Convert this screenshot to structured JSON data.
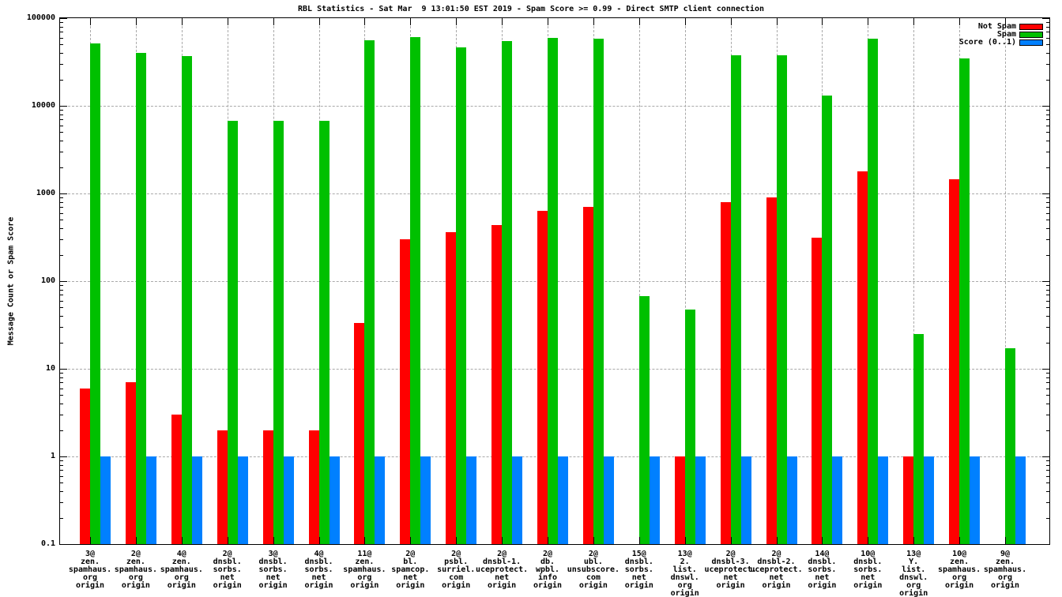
{
  "title": "RBL Statistics - Sat Mar  9 13:01:50 EST 2019 - Spam Score >= 0.99 - Direct SMTP client connection",
  "y_axis": {
    "label": "Message Count or Spam Score",
    "tick_labels": [
      "100000",
      "10000",
      "1000",
      "100",
      "10",
      "1",
      "0.1"
    ],
    "min": 0.1,
    "max": 100000,
    "scale": "log"
  },
  "legend": {
    "position": "top-right",
    "items": [
      {
        "label": "Not Spam",
        "color": "#ff0000"
      },
      {
        "label": "Spam",
        "color": "#00c000"
      },
      {
        "label": "Score (0..1)",
        "color": "#0080ff"
      }
    ]
  },
  "colors": {
    "not_spam": "#ff0000",
    "spam": "#00c000",
    "score": "#0080ff",
    "grid": "#a9a9a9",
    "border": "#000000"
  },
  "chart_data": {
    "type": "bar",
    "title": "RBL Statistics - Sat Mar  9 13:01:50 EST 2019 - Spam Score >= 0.99 - Direct SMTP client connection",
    "xlabel": "",
    "ylabel": "Message Count or Spam Score",
    "ylim": [
      0.1,
      100000
    ],
    "log_y": true,
    "grid": true,
    "legend_position": "top-right",
    "series_names": [
      "Not Spam",
      "Spam",
      "Score (0..1)"
    ],
    "groups": [
      {
        "label_lines": [
          "3@",
          "zen.",
          "spamhaus.",
          "org",
          "origin"
        ],
        "not_spam": 6,
        "spam": 52000,
        "score": 1
      },
      {
        "label_lines": [
          "2@",
          "zen.",
          "spamhaus.",
          "org",
          "origin"
        ],
        "not_spam": 7,
        "spam": 40000,
        "score": 1
      },
      {
        "label_lines": [
          "4@",
          "zen.",
          "spamhaus.",
          "org",
          "origin"
        ],
        "not_spam": 3,
        "spam": 37000,
        "score": 1
      },
      {
        "label_lines": [
          "2@",
          "dnsbl.",
          "sorbs.",
          "net",
          "origin"
        ],
        "not_spam": 2,
        "spam": 6700,
        "score": 1
      },
      {
        "label_lines": [
          "3@",
          "dnsbl.",
          "sorbs.",
          "net",
          "origin"
        ],
        "not_spam": 2,
        "spam": 6700,
        "score": 1
      },
      {
        "label_lines": [
          "4@",
          "dnsbl.",
          "sorbs.",
          "net",
          "origin"
        ],
        "not_spam": 2,
        "spam": 6700,
        "score": 1
      },
      {
        "label_lines": [
          "11@",
          "zen.",
          "spamhaus.",
          "org",
          "origin"
        ],
        "not_spam": 33,
        "spam": 56000,
        "score": 1
      },
      {
        "label_lines": [
          "2@",
          "bl.",
          "spamcop.",
          "net",
          "origin"
        ],
        "not_spam": 300,
        "spam": 61000,
        "score": 1
      },
      {
        "label_lines": [
          "2@",
          "psbl.",
          "surriel.",
          "com",
          "origin"
        ],
        "not_spam": 360,
        "spam": 46000,
        "score": 1
      },
      {
        "label_lines": [
          "2@",
          "dnsbl-1.",
          "uceprotect.",
          "net",
          "origin"
        ],
        "not_spam": 440,
        "spam": 55000,
        "score": 1
      },
      {
        "label_lines": [
          "2@",
          "db.",
          "wpbl.",
          "info",
          "origin"
        ],
        "not_spam": 630,
        "spam": 59000,
        "score": 1
      },
      {
        "label_lines": [
          "2@",
          "ubl.",
          "unsubscore.",
          "com",
          "origin"
        ],
        "not_spam": 700,
        "spam": 58000,
        "score": 1
      },
      {
        "label_lines": [
          "15@",
          "dnsbl.",
          "sorbs.",
          "net",
          "origin"
        ],
        "not_spam": null,
        "spam": 68,
        "score": 1
      },
      {
        "label_lines": [
          "13@",
          "2.",
          "list.",
          "dnswl.",
          "org",
          "origin"
        ],
        "not_spam": 1,
        "spam": 47,
        "score": 1
      },
      {
        "label_lines": [
          "2@",
          "dnsbl-3.",
          "uceprotect.",
          "net",
          "origin"
        ],
        "not_spam": 800,
        "spam": 38000,
        "score": 1
      },
      {
        "label_lines": [
          "2@",
          "dnsbl-2.",
          "uceprotect.",
          "net",
          "origin"
        ],
        "not_spam": 900,
        "spam": 37500,
        "score": 1
      },
      {
        "label_lines": [
          "14@",
          "dnsbl.",
          "sorbs.",
          "net",
          "origin"
        ],
        "not_spam": 310,
        "spam": 13000,
        "score": 1
      },
      {
        "label_lines": [
          "10@",
          "dnsbl.",
          "sorbs.",
          "net",
          "origin"
        ],
        "not_spam": 1800,
        "spam": 58500,
        "score": 1
      },
      {
        "label_lines": [
          "13@",
          "Y.",
          "list.",
          "dnswl.",
          "org",
          "origin"
        ],
        "not_spam": 1,
        "spam": 25,
        "score": 1
      },
      {
        "label_lines": [
          "10@",
          "zen.",
          "spamhaus.",
          "org",
          "origin"
        ],
        "not_spam": 1450,
        "spam": 35000,
        "score": 1
      },
      {
        "label_lines": [
          "9@",
          "zen.",
          "spamhaus.",
          "org",
          "origin"
        ],
        "not_spam": null,
        "spam": 17,
        "score": 1
      }
    ]
  }
}
